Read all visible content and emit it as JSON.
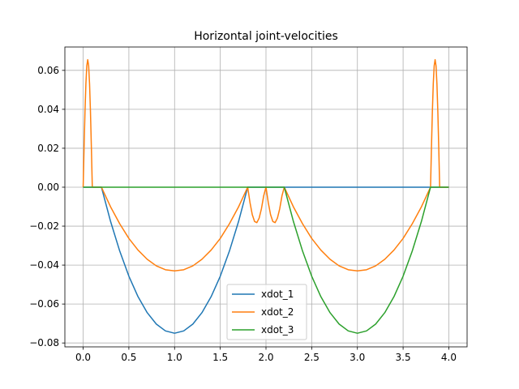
{
  "chart_data": {
    "type": "line",
    "title": "Horizontal joint-velocities",
    "xlabel": "",
    "ylabel": "",
    "xlim": [
      -0.2,
      4.2
    ],
    "ylim": [
      -0.082,
      0.072
    ],
    "xticks": [
      0.0,
      0.5,
      1.0,
      1.5,
      2.0,
      2.5,
      3.0,
      3.5,
      4.0
    ],
    "xtick_labels": [
      "0.0",
      "0.5",
      "1.0",
      "1.5",
      "2.0",
      "2.5",
      "3.0",
      "3.5",
      "4.0"
    ],
    "yticks": [
      0.06,
      0.04,
      0.02,
      0.0,
      -0.02,
      -0.04,
      -0.06,
      -0.08
    ],
    "ytick_labels": [
      "0.06",
      "0.04",
      "0.02",
      "0.00",
      "−0.02",
      "−0.04",
      "−0.06",
      "−0.08"
    ],
    "grid": true,
    "legend_position": "lower-center",
    "series": [
      {
        "name": "xdot_1",
        "color": "#1f77b4",
        "x": [
          0.0,
          0.2,
          0.3,
          0.4,
          0.5,
          0.6,
          0.7,
          0.8,
          0.9,
          1.0,
          1.1,
          1.2,
          1.3,
          1.4,
          1.5,
          1.6,
          1.7,
          1.8,
          2.0,
          2.2,
          3.0,
          3.8,
          4.0
        ],
        "y": [
          0.0,
          0.0,
          -0.0176,
          -0.0328,
          -0.0457,
          -0.0562,
          -0.0644,
          -0.0703,
          -0.0738,
          -0.075,
          -0.0738,
          -0.0703,
          -0.0644,
          -0.0562,
          -0.0457,
          -0.0328,
          -0.0176,
          0.0,
          0.0,
          0.0,
          0.0,
          0.0,
          0.0
        ]
      },
      {
        "name": "xdot_2",
        "color": "#ff7f0e",
        "x": [
          0.0,
          0.01,
          0.02,
          0.03,
          0.04,
          0.05,
          0.06,
          0.07,
          0.08,
          0.09,
          0.1,
          0.11,
          0.12,
          0.13,
          0.14,
          0.15,
          0.16,
          0.17,
          0.18,
          0.19,
          0.2,
          0.3,
          0.4,
          0.5,
          0.6,
          0.7,
          0.8,
          0.9,
          1.0,
          1.1,
          1.2,
          1.3,
          1.4,
          1.5,
          1.6,
          1.7,
          1.8,
          1.825,
          1.85,
          1.875,
          1.9,
          1.925,
          1.95,
          1.975,
          2.0,
          2.025,
          2.05,
          2.075,
          2.1,
          2.125,
          2.15,
          2.175,
          2.2,
          2.3,
          2.4,
          2.5,
          2.6,
          2.7,
          2.8,
          2.9,
          3.0,
          3.1,
          3.2,
          3.3,
          3.4,
          3.5,
          3.6,
          3.7,
          3.8,
          3.81,
          3.82,
          3.83,
          3.84,
          3.85,
          3.86,
          3.87,
          3.88,
          3.89,
          3.9,
          3.91,
          3.92,
          3.93,
          3.94,
          3.95,
          3.96,
          3.97,
          3.98,
          3.99,
          4.0
        ],
        "y": [
          0.0,
          0.0203,
          0.0386,
          0.0531,
          0.0624,
          0.0655,
          0.0624,
          0.0531,
          0.0386,
          0.0203,
          0.0,
          0.0,
          0.0,
          0.0,
          0.0,
          0.0,
          0.0,
          0.0,
          0.0,
          0.0,
          0.0,
          -0.0101,
          -0.0188,
          -0.0263,
          -0.0323,
          -0.037,
          -0.0404,
          -0.0424,
          -0.043,
          -0.0424,
          -0.0404,
          -0.037,
          -0.0323,
          -0.0263,
          -0.0188,
          -0.0101,
          0.0,
          -0.0079,
          -0.0141,
          -0.0176,
          -0.0182,
          -0.0159,
          -0.0111,
          -0.0044,
          0.0,
          -0.0079,
          -0.0141,
          -0.0176,
          -0.0182,
          -0.0159,
          -0.0111,
          -0.0044,
          0.0,
          -0.0101,
          -0.0188,
          -0.0263,
          -0.0323,
          -0.037,
          -0.0404,
          -0.0424,
          -0.043,
          -0.0424,
          -0.0404,
          -0.037,
          -0.0323,
          -0.0263,
          -0.0188,
          -0.0101,
          0.0,
          0.0203,
          0.0386,
          0.0531,
          0.0624,
          0.0655,
          0.0624,
          0.0531,
          0.0386,
          0.0203,
          0.0,
          0.0,
          0.0,
          0.0,
          0.0,
          0.0,
          0.0,
          0.0,
          0.0,
          0.0,
          0.0
        ]
      },
      {
        "name": "xdot_3",
        "color": "#2ca02c",
        "x": [
          0.0,
          1.0,
          1.8,
          2.0,
          2.2,
          2.3,
          2.4,
          2.5,
          2.6,
          2.7,
          2.8,
          2.9,
          3.0,
          3.1,
          3.2,
          3.3,
          3.4,
          3.5,
          3.6,
          3.7,
          3.8,
          4.0
        ],
        "y": [
          0.0,
          0.0,
          0.0,
          0.0,
          0.0,
          -0.0176,
          -0.0328,
          -0.0457,
          -0.0562,
          -0.0644,
          -0.0703,
          -0.0738,
          -0.075,
          -0.0738,
          -0.0703,
          -0.0644,
          -0.0562,
          -0.0457,
          -0.0328,
          -0.0176,
          0.0,
          0.0
        ]
      }
    ]
  }
}
